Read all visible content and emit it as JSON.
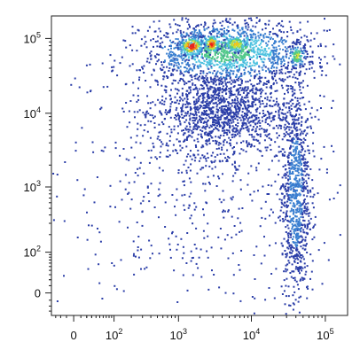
{
  "chart_data": {
    "type": "scatter",
    "title": "",
    "xlabel": "",
    "ylabel": "",
    "x_scale": "biexponential",
    "y_scale": "biexponential",
    "xlim": [
      -40,
      200000
    ],
    "ylim": [
      -40,
      200000
    ],
    "grid": false,
    "legend": "none",
    "x_ticks": [
      {
        "value": 0,
        "base": "0",
        "exp": ""
      },
      {
        "value": 100,
        "base": "10",
        "exp": "2"
      },
      {
        "value": 1000,
        "base": "10",
        "exp": "3"
      },
      {
        "value": 10000,
        "base": "10",
        "exp": "4"
      },
      {
        "value": 100000,
        "base": "10",
        "exp": "5"
      }
    ],
    "y_ticks": [
      {
        "value": 0,
        "base": "0",
        "exp": ""
      },
      {
        "value": 100,
        "base": "10",
        "exp": "2"
      },
      {
        "value": 1000,
        "base": "10",
        "exp": "3"
      },
      {
        "value": 10000,
        "base": "10",
        "exp": "4"
      },
      {
        "value": 100000,
        "base": "10",
        "exp": "5"
      }
    ],
    "density_colors": [
      "#2b3ea8",
      "#3a7fd0",
      "#4fc3e0",
      "#52c98a",
      "#c8e03a",
      "#f2c21c",
      "#f07a1a",
      "#e8241c"
    ],
    "populations": [
      {
        "x_range": [
          300,
          60000
        ],
        "y_range": [
          25000,
          180000
        ],
        "count": 1400,
        "peak_density": 0.45
      },
      {
        "x_range": [
          1000,
          2200
        ],
        "y_range": [
          60000,
          110000
        ],
        "count": 160,
        "peak_density": 1.0
      },
      {
        "x_range": [
          2200,
          3600
        ],
        "y_range": [
          65000,
          115000
        ],
        "count": 130,
        "peak_density": 0.95
      },
      {
        "x_range": [
          4000,
          9000
        ],
        "y_range": [
          65000,
          115000
        ],
        "count": 110,
        "peak_density": 0.7
      },
      {
        "x_range": [
          30000,
          55000
        ],
        "y_range": [
          40000,
          90000
        ],
        "count": 120,
        "peak_density": 0.55
      },
      {
        "x_range": [
          500,
          30000
        ],
        "y_range": [
          3000,
          40000
        ],
        "count": 1200,
        "peak_density": 0.12
      },
      {
        "x_range": [
          25000,
          60000
        ],
        "y_range": [
          -20,
          30000
        ],
        "count": 900,
        "peak_density": 0.2
      },
      {
        "x_range": [
          -30,
          200000
        ],
        "y_range": [
          -30,
          150000
        ],
        "count": 700,
        "peak_density": 0.05
      }
    ]
  }
}
